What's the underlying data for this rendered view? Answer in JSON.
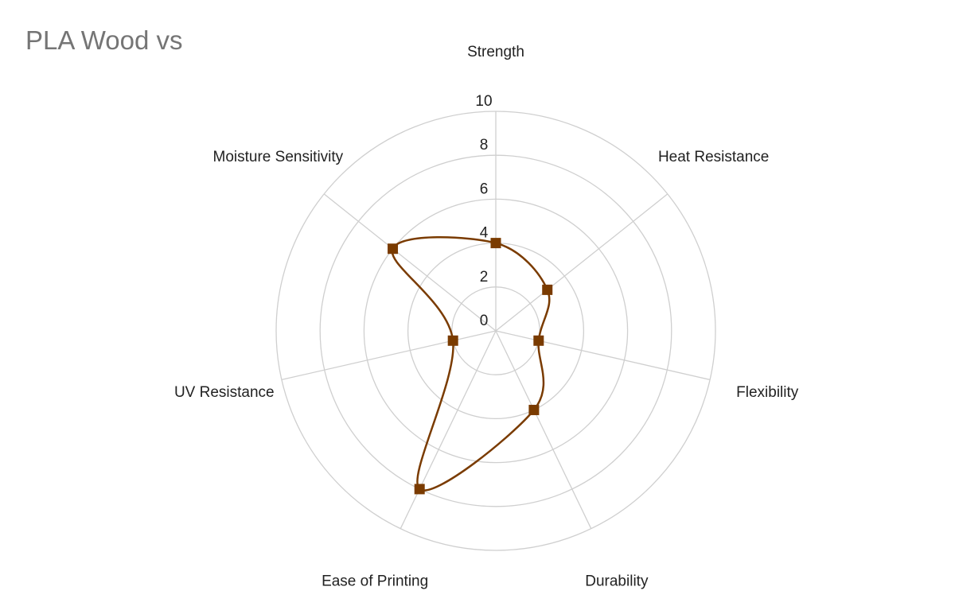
{
  "chart_data": {
    "type": "radar",
    "title": "PLA Wood vs",
    "categories": [
      "Strength",
      "Heat Resistance",
      "Flexibility",
      "Durability",
      "Ease of Printing",
      "UV Resistance",
      "Moisture Sensitivity"
    ],
    "values": [
      4,
      3,
      2,
      4,
      8,
      2,
      6
    ],
    "color": "#7a3b00",
    "ylim": [
      0,
      10
    ],
    "yticks": [
      0,
      2,
      4,
      6,
      8,
      10
    ],
    "grid": true
  }
}
